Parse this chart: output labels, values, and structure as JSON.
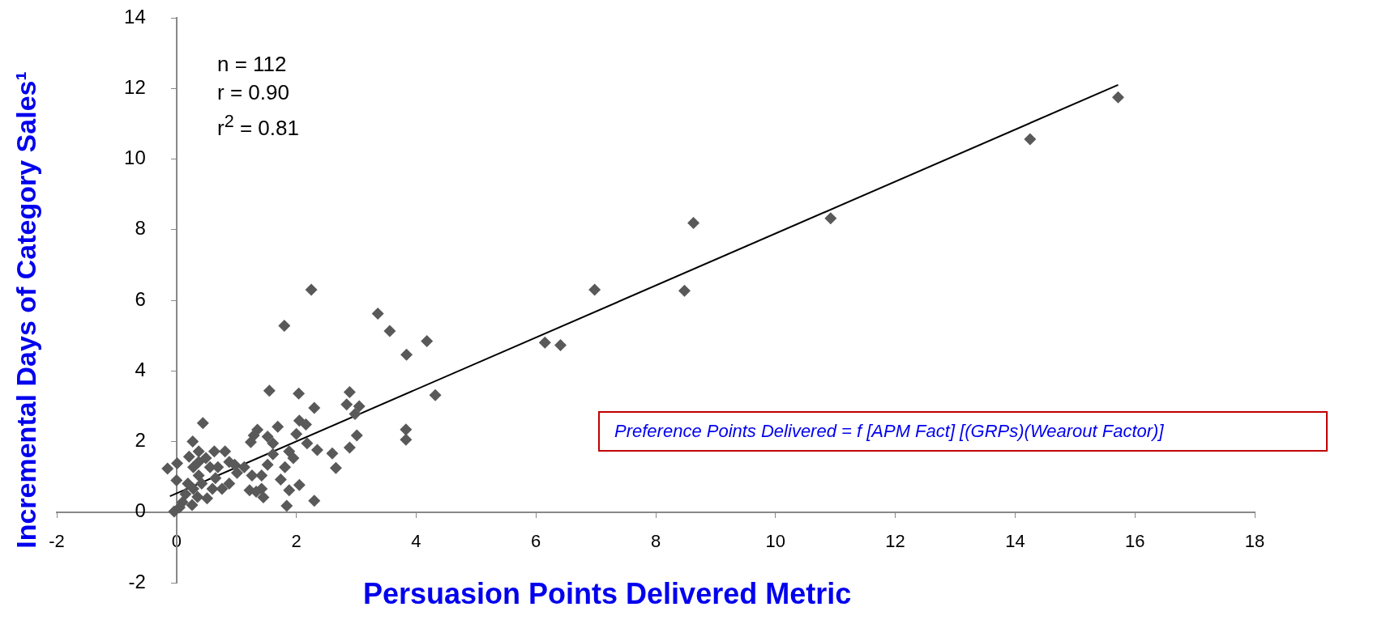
{
  "chart_data": {
    "type": "scatter",
    "xlabel": "Persuasion Points Delivered Metric",
    "ylabel": "Incremental Days of Category Sales¹",
    "xlim": [
      -2,
      18
    ],
    "xticks": [
      -2,
      0,
      2,
      4,
      6,
      8,
      10,
      12,
      14,
      16,
      18
    ],
    "ylim": [
      -2,
      14
    ],
    "yticks": [
      -2,
      0,
      2,
      4,
      6,
      8,
      10,
      12,
      14
    ],
    "marker": "diamond",
    "annotations": [
      "n = 112",
      "r = 0.90",
      "r$^{2}$ = 0.81",
      "Preference Points Delivered = f [APM Fact] [(GRPs)(Wearout Factor)]"
    ],
    "series": [
      {
        "color": "#595959",
        "x": [
          2.25,
          1.8,
          3.36,
          3.56,
          4.18,
          3.84,
          4.32,
          3.83,
          3.83,
          1.55,
          2.04,
          2.3,
          2.89,
          2.84,
          3.05,
          2.98,
          3.01,
          2.89,
          2.6,
          2.66,
          2.3,
          1.84,
          2.05,
          1.88,
          1.74,
          1.81,
          1.95,
          1.88,
          1.69,
          1.35,
          1.24,
          1.52,
          1.61,
          2.05,
          2.16,
          2.0,
          2.18,
          2.35,
          1.61,
          1.52,
          1.42,
          1.42,
          1.33,
          1.45,
          1.22,
          1.13,
          1.26,
          1.01,
          0.88,
          0.81,
          0.63,
          0.44,
          0.27,
          -0.15,
          0.01,
          0.0,
          0.21,
          0.37,
          0.49,
          0.56,
          0.37,
          0.65,
          0.76,
          0.88,
          0.51,
          0.6,
          0.26,
          -0.04,
          0.1,
          0.15,
          0.28,
          0.42,
          0.19,
          0.35,
          0.05,
          0.69,
          0.37,
          0.28,
          0.97,
          1.29,
          6.15,
          6.41,
          6.98,
          8.48,
          8.63,
          10.92,
          14.25,
          15.72
        ],
        "values": [
          6.3,
          5.28,
          5.62,
          5.13,
          4.84,
          4.46,
          3.31,
          2.34,
          2.05,
          3.44,
          3.36,
          2.95,
          3.4,
          3.05,
          3.0,
          2.78,
          2.17,
          1.83,
          1.66,
          1.25,
          0.32,
          0.18,
          0.77,
          0.62,
          0.92,
          1.27,
          1.53,
          1.72,
          2.42,
          2.33,
          1.98,
          2.14,
          1.95,
          2.59,
          2.48,
          2.21,
          1.95,
          1.76,
          1.64,
          1.34,
          1.04,
          0.66,
          0.58,
          0.42,
          0.62,
          1.27,
          1.04,
          1.11,
          1.42,
          1.72,
          1.72,
          2.52,
          2.0,
          1.23,
          1.38,
          0.9,
          1.57,
          1.42,
          1.53,
          1.27,
          1.04,
          0.96,
          0.66,
          0.81,
          0.39,
          0.66,
          0.2,
          0.02,
          0.28,
          0.51,
          0.66,
          0.81,
          0.81,
          0.43,
          0.13,
          1.27,
          1.72,
          1.27,
          1.34,
          2.17,
          4.8,
          4.73,
          6.3,
          6.27,
          8.19,
          8.32,
          10.56,
          11.75
        ]
      },
      {
        "type": "line",
        "color": "#000000",
        "marker": "none",
        "x": [
          -0.11,
          15.72
        ],
        "values": [
          0.45,
          12.1
        ]
      }
    ]
  }
}
